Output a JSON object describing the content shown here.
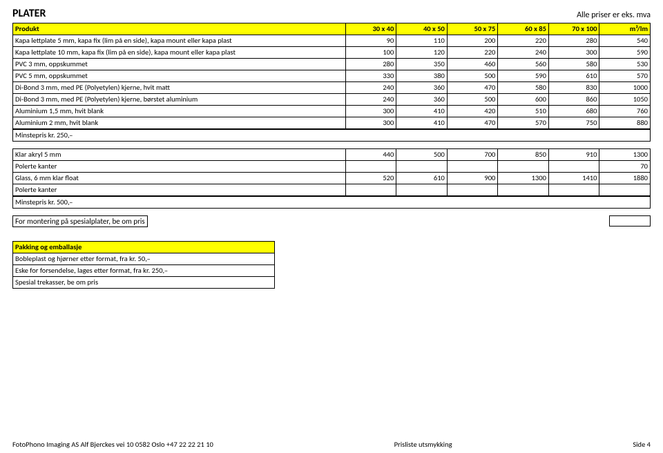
{
  "header": {
    "title": "PLATER",
    "vat_note": "Alle priser er eks. mva"
  },
  "table1": {
    "columns": [
      "Produkt",
      "30 x 40",
      "40 x 50",
      "50 x 75",
      "60 x 85",
      "70 x 100",
      "m²/lm"
    ],
    "rows": [
      [
        "Kapa lettplate 5 mm, kapa fix (lim på en side), kapa mount eller kapa plast",
        "90",
        "110",
        "200",
        "220",
        "280",
        "540"
      ],
      [
        "Kapa lettplate 10 mm, kapa fix (lim på en side), kapa mount eller kapa plast",
        "100",
        "120",
        "220",
        "240",
        "300",
        "590"
      ],
      [
        "PVC 3 mm, oppskummet",
        "280",
        "350",
        "460",
        "560",
        "580",
        "530"
      ],
      [
        "PVC 5 mm, oppskummet",
        "330",
        "380",
        "500",
        "590",
        "610",
        "570"
      ],
      [
        "Di-Bond 3 mm, med PE (Polyetylen) kjerne, hvit matt",
        "240",
        "360",
        "470",
        "580",
        "830",
        "1000"
      ],
      [
        "Di-Bond 3 mm, med PE (Polyetylen) kjerne, børstet aluminium",
        "240",
        "360",
        "500",
        "600",
        "860",
        "1050"
      ],
      [
        "Aluminium 1,5 mm, hvit blank",
        "300",
        "410",
        "420",
        "510",
        "680",
        "760"
      ],
      [
        "Aluminium 2 mm, hvit blank",
        "300",
        "410",
        "470",
        "570",
        "750",
        "880"
      ]
    ],
    "tail_label": "Minstepris kr. 250,–"
  },
  "table2": {
    "rows": [
      [
        "Klar akryl 5 mm",
        "440",
        "500",
        "700",
        "850",
        "910",
        "1300"
      ],
      [
        "Polerte kanter",
        "",
        "",
        "",
        "",
        "",
        "70"
      ],
      [
        "Glass, 6 mm klar float",
        "520",
        "610",
        "900",
        "1300",
        "1410",
        "1880"
      ],
      [
        "Polerte kanter",
        "",
        "",
        "",
        "",
        "",
        ""
      ]
    ],
    "tail_label": "Minstepris kr. 500,–"
  },
  "note_between": "For montering på spesialplater, be om pris",
  "packing": {
    "header": "Pakking og emballasje",
    "rows": [
      "Bobleplast og hjørner etter format, fra kr. 50,–",
      "Eske for forsendelse, lages etter format, fra kr. 250,–",
      "Spesial trekasser, be om pris"
    ]
  },
  "footer": {
    "left": "FotoPhono Imaging AS  Alf Bjerckes vei 10  0582 Oslo  +47 22 22 21 10",
    "center": "Prisliste utsmykking",
    "right": "Side 4"
  }
}
